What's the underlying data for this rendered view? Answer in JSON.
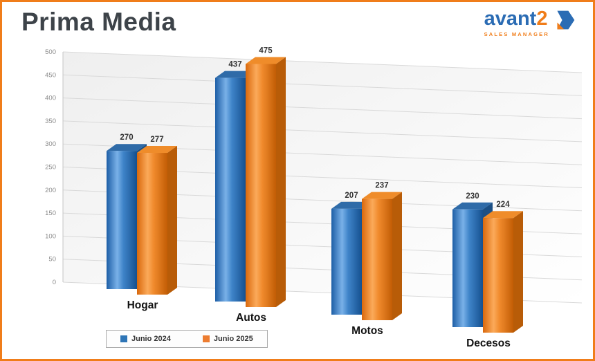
{
  "page": {
    "title": "Prima Media",
    "accent_orange": "#f07d1a",
    "accent_blue": "#2b6cb4"
  },
  "logo": {
    "name_part1": "avant",
    "name_part2": "2",
    "subtitle": "SALES MANAGER"
  },
  "chart_data": {
    "type": "bar",
    "style": "3d",
    "categories": [
      "Hogar",
      "Autos",
      "Motos",
      "Decesos"
    ],
    "series": [
      {
        "name": "Junio 2024",
        "color": "#2e75b6",
        "values": [
          270,
          437,
          207,
          230
        ]
      },
      {
        "name": "Junio 2025",
        "color": "#ed7d31",
        "values": [
          277,
          475,
          237,
          224
        ]
      }
    ],
    "ylim": [
      0,
      500
    ],
    "ytick_step": 50,
    "grid": true,
    "legend_position": "bottom"
  }
}
